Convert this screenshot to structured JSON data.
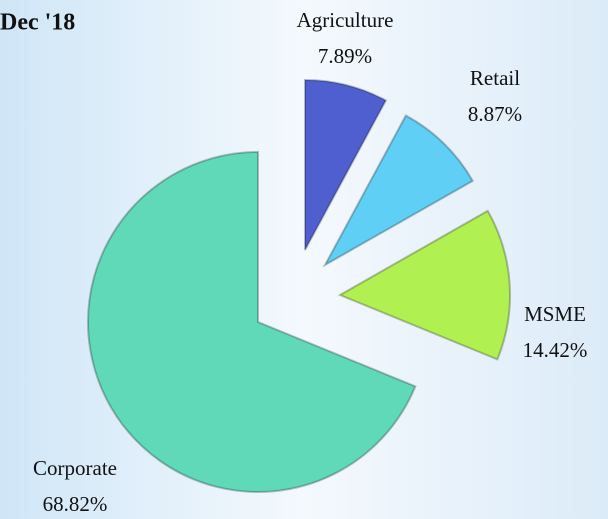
{
  "chart_data": {
    "type": "pie",
    "title": "Dec '18",
    "categories": [
      "Agriculture",
      "Retail",
      "MSME",
      "Corporate"
    ],
    "values": [
      7.89,
      8.87,
      14.42,
      68.82
    ],
    "value_labels": [
      "7.89%",
      "8.87%",
      "14.42%",
      "68.82%"
    ],
    "colors": [
      "#4f5fd0",
      "#5fcff5",
      "#b0f050",
      "#5fd9b8"
    ]
  }
}
